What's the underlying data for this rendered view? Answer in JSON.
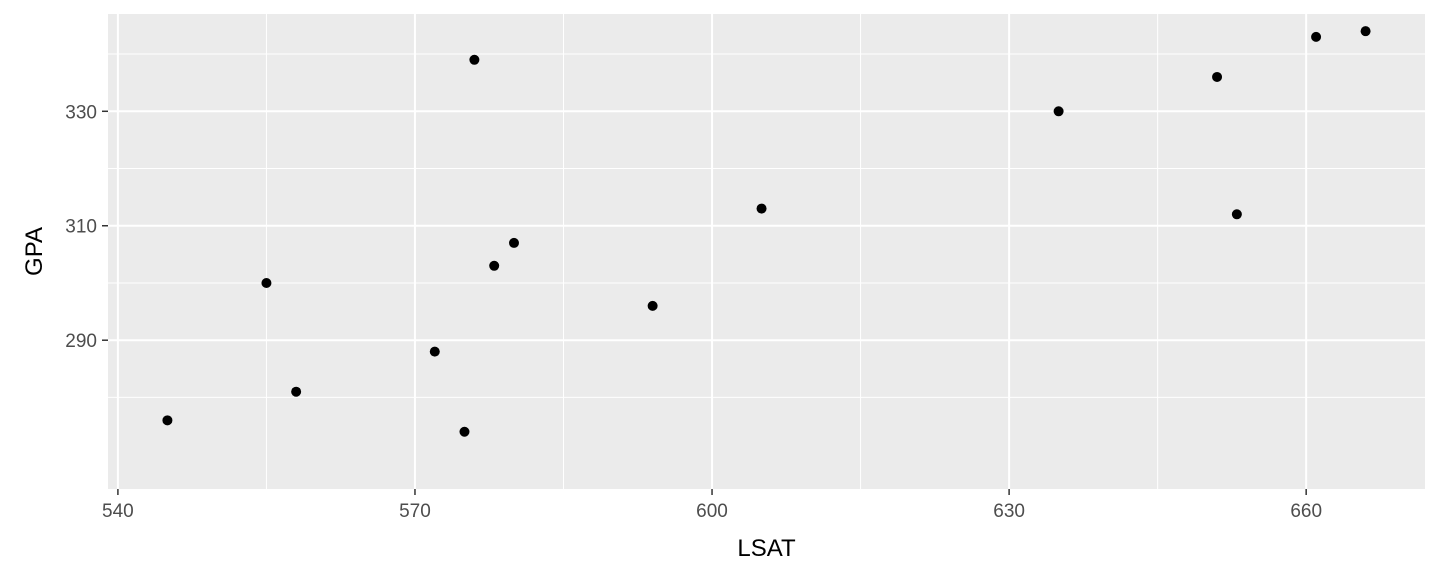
{
  "chart_data": {
    "type": "scatter",
    "title": "",
    "xlabel": "LSAT",
    "ylabel": "GPA",
    "xlim": [
      539,
      672
    ],
    "ylim": [
      264,
      347
    ],
    "x_ticks": [
      540,
      570,
      600,
      630,
      660
    ],
    "y_ticks": [
      290,
      310,
      330
    ],
    "x_minor_ticks": [
      555,
      585,
      615,
      645
    ],
    "y_minor_ticks": [
      280,
      300,
      320,
      340
    ],
    "grid": true,
    "legend": "none",
    "colors": {
      "panel_background": "#ebebeb",
      "grid_line": "#ffffff",
      "point": "#000000",
      "tick_label": "#4d4d4d",
      "tick_mark": "#333333"
    },
    "points": [
      {
        "x": 545,
        "y": 276
      },
      {
        "x": 555,
        "y": 300
      },
      {
        "x": 558,
        "y": 281
      },
      {
        "x": 572,
        "y": 288
      },
      {
        "x": 575,
        "y": 274
      },
      {
        "x": 576,
        "y": 339
      },
      {
        "x": 578,
        "y": 303
      },
      {
        "x": 580,
        "y": 307
      },
      {
        "x": 594,
        "y": 296
      },
      {
        "x": 605,
        "y": 313
      },
      {
        "x": 635,
        "y": 330
      },
      {
        "x": 651,
        "y": 336
      },
      {
        "x": 653,
        "y": 312
      },
      {
        "x": 661,
        "y": 343
      },
      {
        "x": 666,
        "y": 344
      }
    ]
  }
}
